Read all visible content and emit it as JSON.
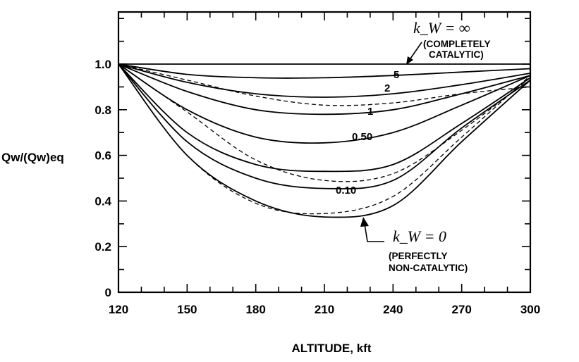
{
  "chart_data": {
    "type": "line",
    "xlabel": "ALTITUDE, kft",
    "ylabel": "Qw/(Qw)eq",
    "xlim": [
      120,
      300
    ],
    "ylim": [
      0,
      1.0
    ],
    "x_ticks": [
      "120",
      "150",
      "180",
      "210",
      "240",
      "270",
      "300"
    ],
    "y_ticks": [
      "0",
      "0.2",
      "0.4",
      "0.6",
      "0.8",
      "1.0"
    ],
    "grid": false,
    "series": [
      {
        "name": "∞",
        "style": "solid",
        "x": [
          120,
          150,
          180,
          210,
          240,
          270,
          300
        ],
        "y": [
          1.0,
          1.0,
          1.0,
          1.0,
          1.0,
          1.0,
          1.0
        ]
      },
      {
        "name": "5",
        "style": "solid",
        "x": [
          120,
          150,
          180,
          210,
          240,
          270,
          300
        ],
        "y": [
          1.0,
          0.955,
          0.94,
          0.94,
          0.95,
          0.965,
          0.98
        ]
      },
      {
        "name": "2",
        "style": "solid",
        "x": [
          120,
          150,
          180,
          210,
          240,
          270,
          300
        ],
        "y": [
          1.0,
          0.92,
          0.87,
          0.855,
          0.87,
          0.91,
          0.96
        ]
      },
      {
        "name": "1",
        "style": "solid",
        "x": [
          120,
          150,
          180,
          210,
          240,
          270,
          300
        ],
        "y": [
          1.0,
          0.88,
          0.8,
          0.78,
          0.8,
          0.87,
          0.95
        ]
      },
      {
        "name": "0.50",
        "style": "solid",
        "x": [
          120,
          150,
          180,
          210,
          240,
          270,
          300
        ],
        "y": [
          1.0,
          0.8,
          0.68,
          0.655,
          0.7,
          0.82,
          0.95
        ]
      },
      {
        "name": "",
        "style": "solid",
        "x": [
          120,
          150,
          180,
          210,
          240,
          270,
          300
        ],
        "y": [
          1.0,
          0.7,
          0.56,
          0.53,
          0.56,
          0.74,
          0.94
        ]
      },
      {
        "name": "0.10",
        "style": "solid",
        "x": [
          120,
          150,
          180,
          210,
          240,
          270,
          300
        ],
        "y": [
          1.0,
          0.66,
          0.5,
          0.455,
          0.49,
          0.72,
          0.93
        ]
      },
      {
        "name": "0",
        "style": "solid",
        "x": [
          120,
          150,
          180,
          210,
          240,
          270,
          300
        ],
        "y": [
          1.0,
          0.6,
          0.4,
          0.33,
          0.38,
          0.66,
          0.93
        ]
      },
      {
        "name": "",
        "style": "dashed",
        "x": [
          120,
          150,
          180,
          210,
          240,
          270,
          300
        ],
        "y": [
          1.0,
          0.93,
          0.86,
          0.82,
          0.83,
          0.87,
          0.9
        ]
      },
      {
        "name": "",
        "style": "dashed",
        "x": [
          120,
          150,
          180,
          210,
          240,
          270,
          300
        ],
        "y": [
          1.0,
          0.79,
          0.58,
          0.49,
          0.52,
          0.71,
          0.94
        ]
      },
      {
        "name": "",
        "style": "dashed",
        "x": [
          120,
          150,
          180,
          210,
          240,
          270,
          300
        ],
        "y": [
          1.0,
          0.6,
          0.39,
          0.345,
          0.42,
          0.68,
          0.95
        ]
      }
    ],
    "annotations": {
      "kw_inf": "k_W = ∞",
      "kw_inf_note_1": "(COMPLETELY",
      "kw_inf_note_2": "CATALYTIC)",
      "kw_zero": "k_W = 0",
      "kw_zero_note_1": "(PERFECTLY",
      "kw_zero_note_2": "NON-CATALYTIC)"
    }
  }
}
